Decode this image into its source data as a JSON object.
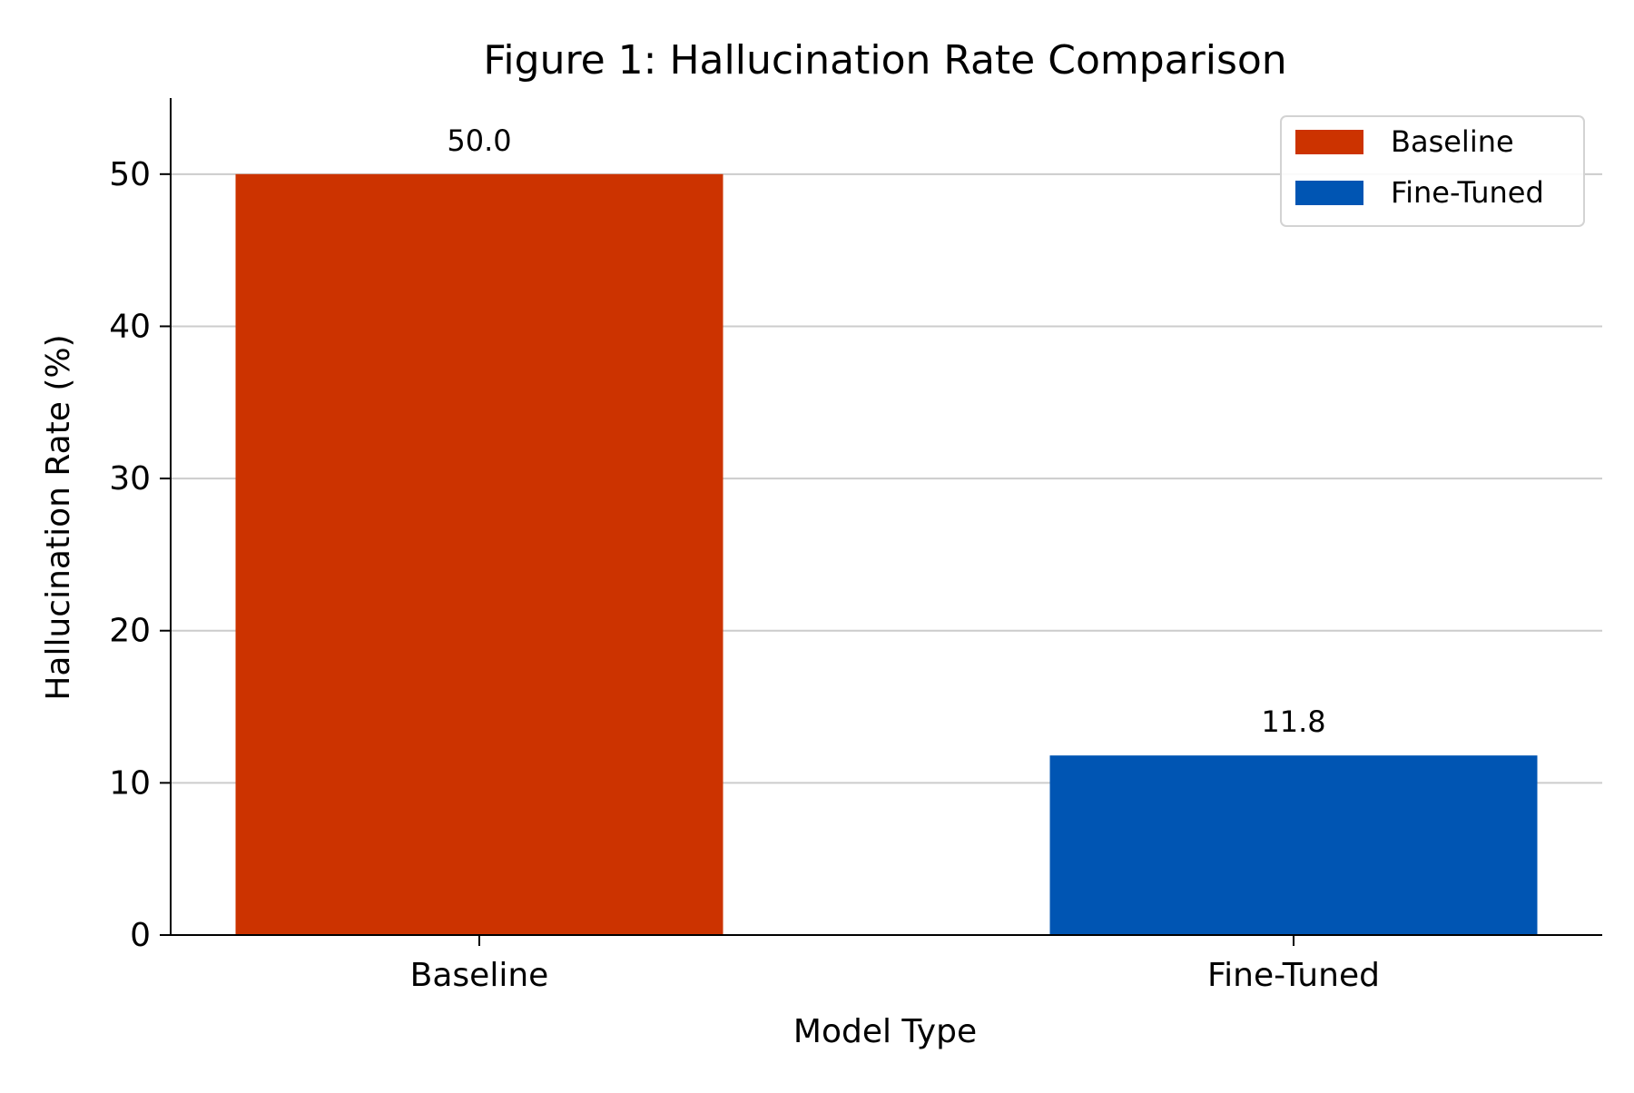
{
  "chart_data": {
    "type": "bar",
    "title": "Figure 1: Hallucination Rate Comparison",
    "xlabel": "Model Type",
    "ylabel": "Hallucination Rate (%)",
    "categories": [
      "Baseline",
      "Fine-Tuned"
    ],
    "values": [
      50.0,
      11.8
    ],
    "value_labels": [
      "50.0",
      "11.8"
    ],
    "colors": [
      "#cc3300",
      "#0055b3"
    ],
    "ylim": [
      0,
      55
    ],
    "yticks": [
      0,
      10,
      20,
      30,
      40,
      50
    ],
    "grid": "horizontal",
    "legend": {
      "position": "top-right",
      "entries": [
        {
          "label": "Baseline",
          "color": "#cc3300"
        },
        {
          "label": "Fine-Tuned",
          "color": "#0055b3"
        }
      ]
    }
  }
}
